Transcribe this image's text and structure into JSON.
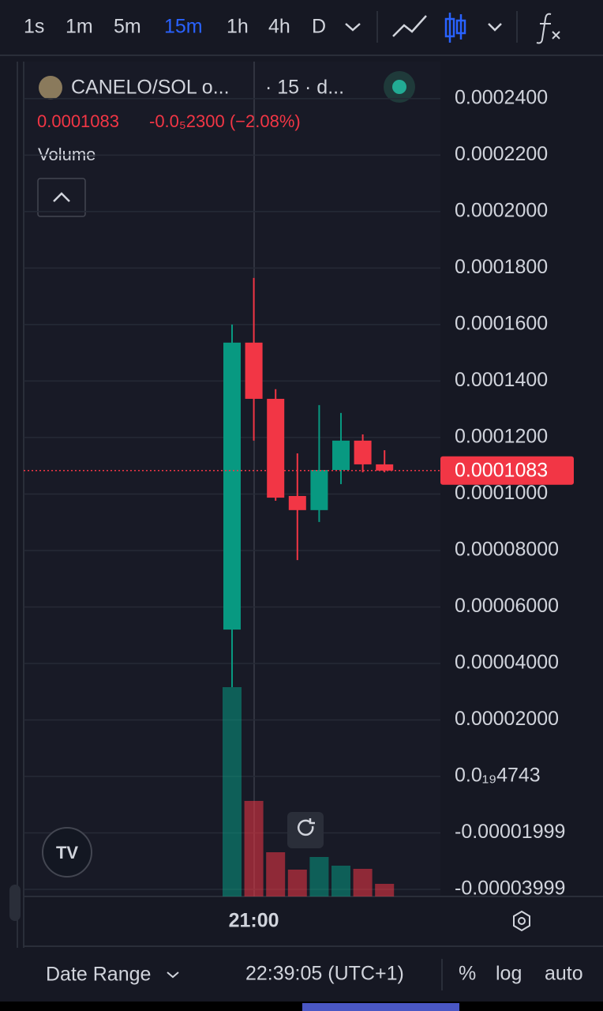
{
  "toolbar": {
    "intervals": [
      "1s",
      "1m",
      "5m",
      "15m",
      "1h",
      "4h",
      "D"
    ],
    "active": 3
  },
  "chart_data": {
    "type": "candlestick",
    "symbol": "CANELO/SOL o...",
    "meta": "· 15 · d...",
    "change": "-0.0₅2300 (−2.08%)",
    "volume_label": "Volume",
    "categories": [
      null,
      "21:00",
      null,
      null,
      null,
      null,
      null,
      null
    ],
    "open": [
      5.2e-05,
      0.0001536,
      0.0001337,
      9.93e-05,
      9.43e-05,
      0.0001085,
      0.0001189,
      0.0001105
    ],
    "high": [
      0.00016,
      0.0001765,
      0.0001371,
      0.0001144,
      0.0001315,
      0.0001287,
      0.0001211,
      0.0001155
    ],
    "low": [
      3.16e-05,
      0.0001189,
      9.76e-05,
      7.66e-05,
      9.01e-05,
      0.0001035,
      0.0001077,
      0.0001077
    ],
    "close": [
      0.0001536,
      0.0001337,
      9.87e-05,
      9.43e-05,
      0.0001085,
      0.0001189,
      0.0001105,
      0.0001083
    ],
    "volume": [
      265,
      121,
      56,
      34,
      50,
      39,
      35,
      16
    ],
    "up_color": "#089981",
    "down_color": "#f23645",
    "last_price": 0.0001083,
    "ylim": [
      -4.25e-05,
      0.0002531
    ],
    "yticks": [
      {
        "value": 0.00024,
        "label": "0.0002400"
      },
      {
        "value": 0.00022,
        "label": "0.0002200"
      },
      {
        "value": 0.0002,
        "label": "0.0002000"
      },
      {
        "value": 0.00018,
        "label": "0.0001800"
      },
      {
        "value": 0.00016,
        "label": "0.0001600"
      },
      {
        "value": 0.00014,
        "label": "0.0001400"
      },
      {
        "value": 0.00012,
        "label": "0.0001200"
      },
      {
        "value": 0.0001,
        "label": "0.0001000"
      },
      {
        "value": 8e-05,
        "label": "0.00008000"
      },
      {
        "value": 6e-05,
        "label": "0.00006000"
      },
      {
        "value": 4e-05,
        "label": "0.00004000"
      },
      {
        "value": 2e-05,
        "label": "0.00002000"
      },
      {
        "value": 4.743e-20,
        "label": "0.0₁₉4743"
      },
      {
        "value": -1.999e-05,
        "label": "-0.00001999"
      },
      {
        "value": -3.999e-05,
        "label": "-0.00003999"
      }
    ],
    "grid": true
  },
  "footer": {
    "date_range": "Date Range",
    "clock": "22:39:05 (UTC+1)",
    "percent": "%",
    "log": "log",
    "auto": "auto"
  }
}
